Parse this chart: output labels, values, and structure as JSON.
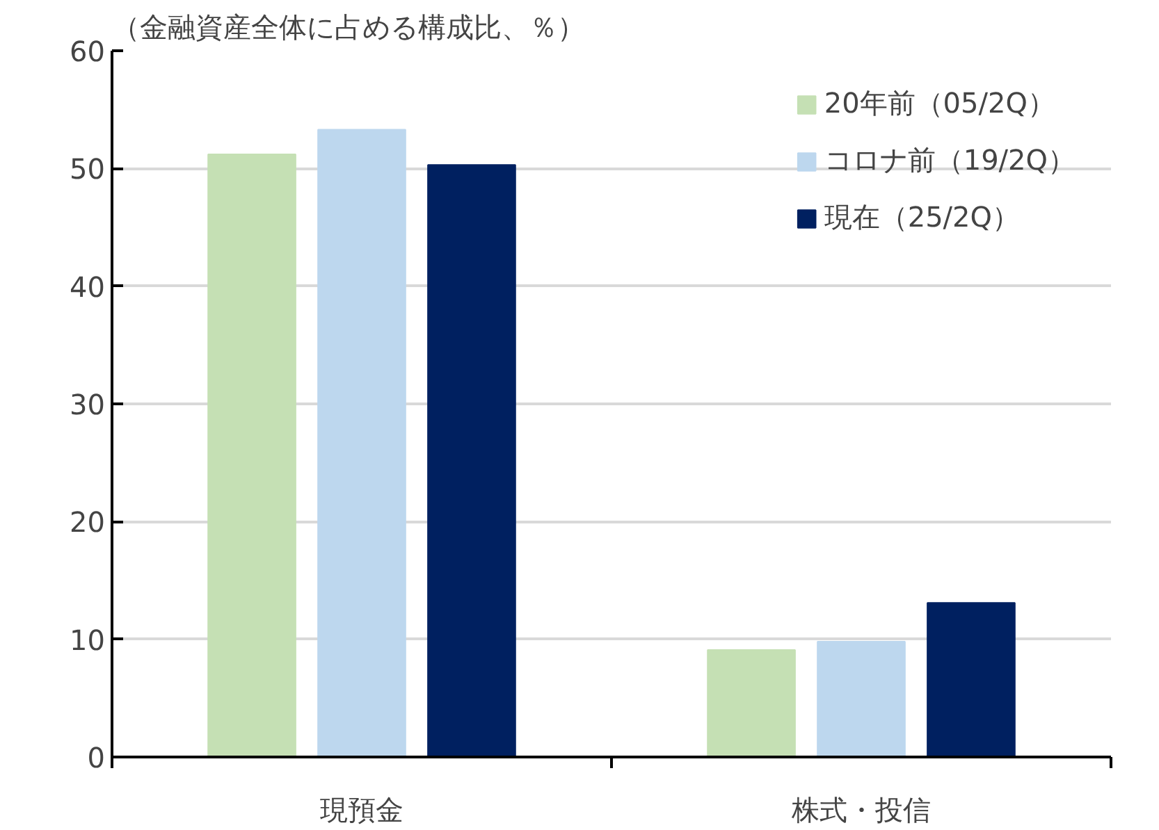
{
  "chart_data": {
    "type": "bar",
    "title": "（金融資産全体に占める構成比、％）",
    "categories": [
      "現預金",
      "株式・投信"
    ],
    "series": [
      {
        "name": "20年前（05/2Q）",
        "color": "#c5e0b4",
        "values": [
          51.2,
          9.1
        ]
      },
      {
        "name": "コロナ前（19/2Q）",
        "color": "#bdd7ee",
        "values": [
          53.3,
          9.8
        ]
      },
      {
        "name": "現在（25/2Q）",
        "color": "#002060",
        "values": [
          50.3,
          13.1
        ]
      }
    ],
    "ylim": [
      0,
      60
    ],
    "yticks": [
      0,
      10,
      20,
      30,
      40,
      50,
      60
    ],
    "grid": "y",
    "legend": "top right"
  }
}
